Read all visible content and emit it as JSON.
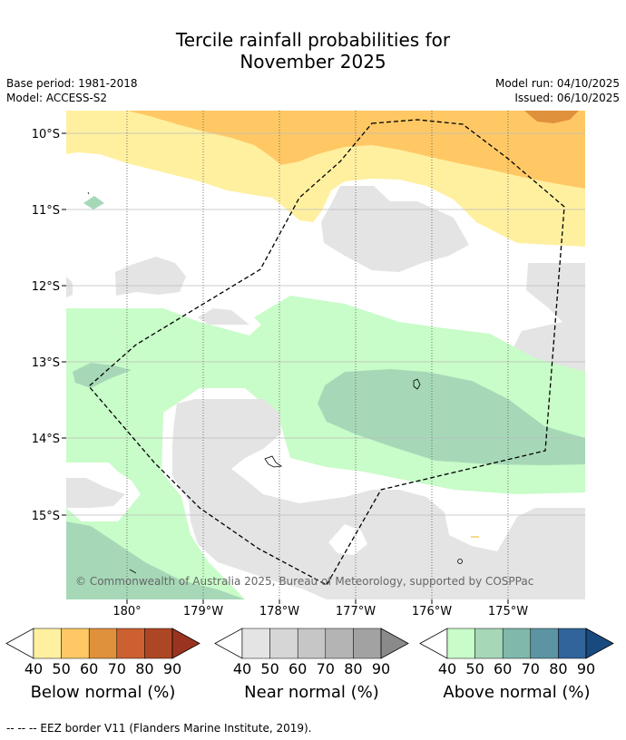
{
  "title_line1": "Tercile rainfall probabilities for",
  "title_line2": "November 2025",
  "base_period": "Base period: 1981-2018",
  "model": "Model: ACCESS-S2",
  "model_run": "Model run: 04/10/2025",
  "issued": "Issued: 06/10/2025",
  "map": {
    "lat_labels": [
      "10°S",
      "11°S",
      "12°S",
      "13°S",
      "14°S",
      "15°S"
    ],
    "lon_labels": [
      "180°",
      "179°W",
      "178°W",
      "177°W",
      "176°W",
      "175°W"
    ],
    "copyright": "© Commonwealth of Australia 2025, Bureau of Meteorology, supported by COSPPac"
  },
  "colorbars": [
    {
      "name": "Below normal (%)",
      "ticks": [
        "40",
        "50",
        "60",
        "70",
        "80",
        "90"
      ],
      "colors": [
        "#fff0a0",
        "#ffc864",
        "#e0913c",
        "#cc6030",
        "#ad4624",
        "#9a3420"
      ]
    },
    {
      "name": "Near normal (%)",
      "ticks": [
        "40",
        "50",
        "60",
        "70",
        "80",
        "90"
      ],
      "colors": [
        "#e4e4e4",
        "#d6d6d6",
        "#c6c6c6",
        "#b4b4b4",
        "#a2a2a2",
        "#8a8a8a"
      ]
    },
    {
      "name": "Above normal (%)",
      "ticks": [
        "40",
        "50",
        "60",
        "70",
        "80",
        "90"
      ],
      "colors": [
        "#c8fcc8",
        "#a6d8b8",
        "#80b8ac",
        "#5c94a4",
        "#30649a",
        "#184a80"
      ]
    }
  ],
  "footnote": "--  --  -- EEZ border V11 (Flanders Marine Institute, 2019)."
}
